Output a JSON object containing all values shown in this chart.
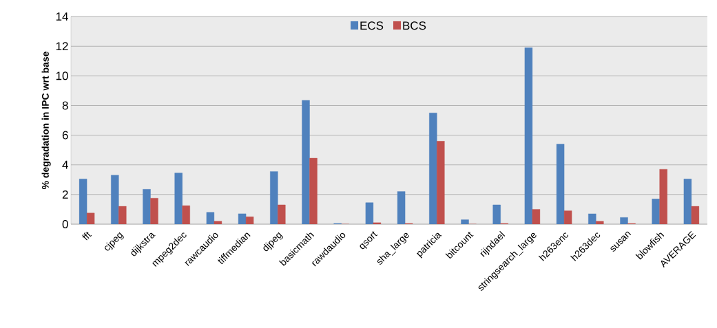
{
  "chart_data": {
    "type": "bar",
    "ylabel": "% degradation in IPC wrt base",
    "categories": [
      "fft",
      "cjpeg",
      "dijkstra",
      "mpeg2dec",
      "rawcaudio",
      "tiffmedian",
      "djpeg",
      "basicmath",
      "rawdaudio",
      "qsort",
      "sha_large",
      "patricia",
      "bitcount",
      "rijndael",
      "stringsearch_large",
      "h263enc",
      "h263dec",
      "susan",
      "blowfish",
      "AVERAGE"
    ],
    "series": [
      {
        "name": "ECS",
        "color": "#4f81bd",
        "values": [
          3.05,
          3.3,
          2.35,
          3.45,
          0.8,
          0.7,
          3.55,
          8.35,
          0.05,
          1.45,
          2.2,
          7.5,
          0.3,
          1.3,
          11.9,
          5.4,
          0.7,
          0.45,
          1.7,
          3.05
        ]
      },
      {
        "name": "BCS",
        "color": "#c0504d",
        "values": [
          0.75,
          1.2,
          1.75,
          1.25,
          0.2,
          0.5,
          1.3,
          4.45,
          0.0,
          0.1,
          0.05,
          5.6,
          0.0,
          0.05,
          1.0,
          0.9,
          0.2,
          0.05,
          3.7,
          1.2
        ]
      }
    ],
    "ylim": [
      0,
      14
    ],
    "yticks": [
      0,
      2,
      4,
      6,
      8,
      10,
      12,
      14
    ],
    "grid": "y",
    "legend": "top"
  }
}
